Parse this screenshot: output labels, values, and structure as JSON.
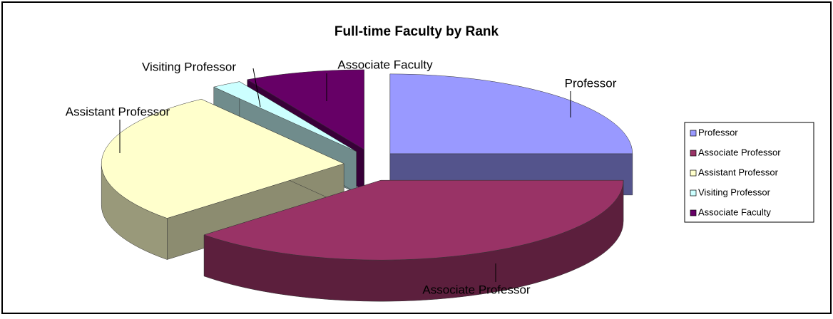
{
  "chart_data": {
    "type": "pie",
    "title": "Full-time Faculty by Rank",
    "categories": [
      "Professor",
      "Associate Professor",
      "Assistant Professor",
      "Visiting Professor",
      "Associate Faculty"
    ],
    "values": [
      25,
      38,
      27,
      2,
      8
    ],
    "colors": [
      "#9999ff",
      "#993366",
      "#ffffcc",
      "#ccffff",
      "#660066"
    ],
    "legend": "right",
    "exploded": true,
    "three_d": true
  }
}
